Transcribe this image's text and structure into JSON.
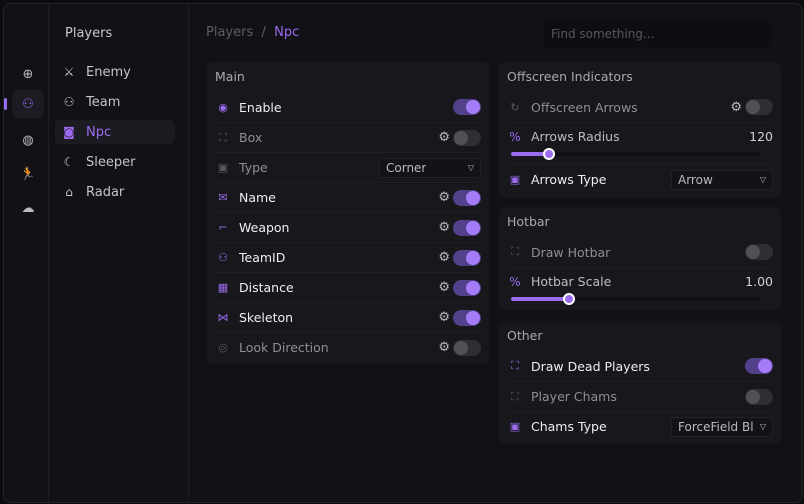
{
  "rail": [
    {
      "icon": "crosshair-icon",
      "glyph": "⊕",
      "active": false
    },
    {
      "icon": "players-icon",
      "glyph": "⚇",
      "active": true
    },
    {
      "icon": "globe-icon",
      "glyph": "◍",
      "active": false
    },
    {
      "icon": "running-icon",
      "glyph": "🏃",
      "active": false
    },
    {
      "icon": "cloud-icon",
      "glyph": "☁",
      "active": false
    }
  ],
  "sidebar": {
    "title": "Players",
    "items": [
      {
        "label": "Enemy",
        "icon": "enemy-icon",
        "glyph": "⚔",
        "active": false
      },
      {
        "label": "Team",
        "icon": "team-icon",
        "glyph": "⚇",
        "active": false
      },
      {
        "label": "Npc",
        "icon": "robot-icon",
        "glyph": "◙",
        "active": true
      },
      {
        "label": "Sleeper",
        "icon": "moon-icon",
        "glyph": "☾",
        "active": false
      },
      {
        "label": "Radar",
        "icon": "radar-home-icon",
        "glyph": "⌂",
        "active": false
      }
    ]
  },
  "header": {
    "breadcrumb": [
      "Players",
      "Npc"
    ],
    "separator": "/",
    "search_placeholder": "Find something..."
  },
  "accent": "#9b6cf0",
  "panels": [
    {
      "title": "Main",
      "rows": [
        {
          "type": "toggle",
          "label": "Enable",
          "icon": "toggle-icon",
          "glyph": "◉",
          "on": true,
          "gear": false
        },
        {
          "type": "toggle",
          "label": "Box",
          "icon": "box-icon",
          "glyph": "⛶",
          "on": false,
          "gear": true
        },
        {
          "type": "dropdown",
          "label": "Type",
          "icon": "type-icon",
          "glyph": "▣",
          "value": "Corner"
        },
        {
          "type": "toggle",
          "label": "Name",
          "icon": "envelope-icon",
          "glyph": "✉",
          "on": true,
          "gear": true
        },
        {
          "type": "toggle",
          "label": "Weapon",
          "icon": "gun-icon",
          "glyph": "⌐",
          "on": true,
          "gear": true
        },
        {
          "type": "toggle",
          "label": "TeamID",
          "icon": "team-id-icon",
          "glyph": "⚇",
          "on": true,
          "gear": true
        },
        {
          "type": "toggle",
          "label": "Distance",
          "icon": "distance-icon",
          "glyph": "▦",
          "on": true,
          "gear": true
        },
        {
          "type": "toggle",
          "label": "Skeleton",
          "icon": "bone-icon",
          "glyph": "⋈",
          "on": true,
          "gear": true
        },
        {
          "type": "toggle",
          "label": "Look Direction",
          "icon": "eye-off-icon",
          "glyph": "◎",
          "on": false,
          "gear": true
        }
      ]
    },
    {
      "title": "Offscreen Indicators",
      "rows": [
        {
          "type": "toggle",
          "label": "Offscreen Arrows",
          "icon": "offscreen-icon",
          "glyph": "↻",
          "on": false,
          "gear": true
        },
        {
          "type": "slider",
          "label": "Arrows Radius",
          "icon": "percent-icon",
          "glyph": "%",
          "value": "120",
          "level": 0.15
        },
        {
          "type": "dropdown",
          "label": "Arrows Type",
          "icon": "type-icon",
          "glyph": "▣",
          "value": "Arrow",
          "on": true
        }
      ]
    },
    {
      "title": "Hotbar",
      "rows": [
        {
          "type": "toggle",
          "label": "Draw Hotbar",
          "icon": "focus-icon",
          "glyph": "⛶",
          "on": false,
          "gear": false
        },
        {
          "type": "slider",
          "label": "Hotbar Scale",
          "icon": "percent-icon",
          "glyph": "%",
          "value": "1.00",
          "level": 0.23
        }
      ]
    },
    {
      "title": "Other",
      "rows": [
        {
          "type": "toggle",
          "label": "Draw Dead Players",
          "icon": "focus-icon",
          "glyph": "⛶",
          "on": true,
          "gear": false
        },
        {
          "type": "toggle",
          "label": "Player Chams",
          "icon": "focus-icon",
          "glyph": "⛶",
          "on": false,
          "gear": false
        },
        {
          "type": "dropdown",
          "label": "Chams Type",
          "icon": "type-icon",
          "glyph": "▣",
          "value": "ForceField Bl",
          "on": true
        }
      ]
    }
  ]
}
